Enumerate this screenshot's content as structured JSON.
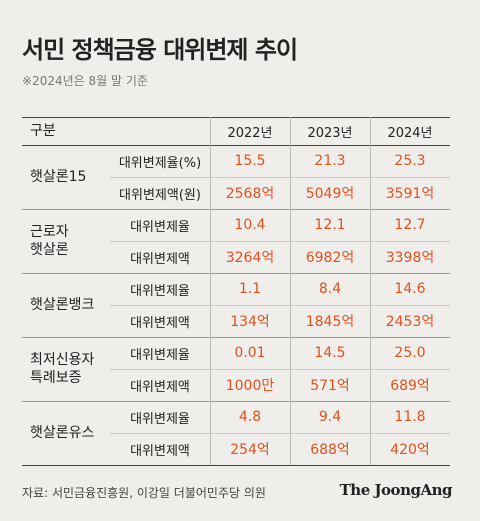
{
  "header": {
    "title": "서민 정책금융 대위변제 추이",
    "note": "※2024년은 8월 말 기준"
  },
  "table": {
    "columns": [
      "구분",
      "2022년",
      "2023년",
      "2024년"
    ],
    "groups": [
      {
        "name": "햇살론15",
        "rows": [
          {
            "label": "대위변제율(%)",
            "values": [
              "15.5",
              "21.3",
              "25.3"
            ]
          },
          {
            "label": "대위변제액(원)",
            "values": [
              "2568억",
              "5049억",
              "3591억"
            ]
          }
        ]
      },
      {
        "name": "근로자\n햇살론",
        "rows": [
          {
            "label": "대위변제율",
            "values": [
              "10.4",
              "12.1",
              "12.7"
            ]
          },
          {
            "label": "대위변제액",
            "values": [
              "3264억",
              "6982억",
              "3398억"
            ]
          }
        ]
      },
      {
        "name": "햇살론뱅크",
        "rows": [
          {
            "label": "대위변제율",
            "values": [
              "1.1",
              "8.4",
              "14.6"
            ]
          },
          {
            "label": "대위변제액",
            "values": [
              "134억",
              "1845억",
              "2453억"
            ]
          }
        ]
      },
      {
        "name": "최저신용자\n특례보증",
        "rows": [
          {
            "label": "대위변제율",
            "values": [
              "0.01",
              "14.5",
              "25.0"
            ]
          },
          {
            "label": "대위변제액",
            "values": [
              "1000만",
              "571억",
              "689억"
            ]
          }
        ]
      },
      {
        "name": "햇살론유스",
        "rows": [
          {
            "label": "대위변제율",
            "values": [
              "4.8",
              "9.4",
              "11.8"
            ]
          },
          {
            "label": "대위변제액",
            "values": [
              "254억",
              "688억",
              "420억"
            ]
          }
        ]
      }
    ]
  },
  "footer": {
    "source": "자료: 서민금융진흥원, 이강일 더불어민주당 의원",
    "logo": "The JoongAng"
  }
}
